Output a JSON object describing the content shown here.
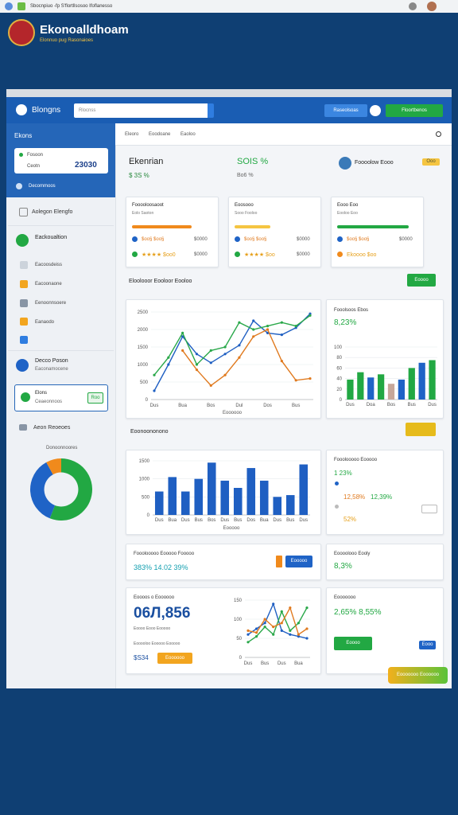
{
  "browser": {
    "tab": "Sbocnpiuo -fp S'flortllsosoo Ifoflanesso"
  },
  "brand": {
    "title": "Ekonoalldhoam",
    "subtitle": "Elonnuo pug Rasonaioes"
  },
  "app": {
    "name": "Blongns",
    "search": "Rlocnss",
    "buttons": [
      "Raseolsoas",
      "Floortbenos"
    ]
  },
  "sidebar": {
    "title": "Ekons",
    "card": {
      "label1": "Fosoon",
      "label2": "Ceotn",
      "value": "23030"
    },
    "link": "Decommoos",
    "groups": [
      "Aolegon Elengfo",
      "Eackoualtion"
    ],
    "items": [
      "Eacoosdeiss",
      "Eacoonaone",
      "Eenoonnsoere",
      "Eanaodo"
    ],
    "group2": {
      "title": "Decco Poson",
      "sub": "Eaconamocene"
    },
    "box": {
      "title": "Elons",
      "sub": "Ceaeonnoos",
      "button": "Roo"
    },
    "group3": "Aeon Reoeoes",
    "donut_title": "Donoonnoores"
  },
  "main": {
    "breadcrumbs": [
      "Eleoro",
      "Eoodoane",
      "Eaoloo"
    ],
    "summary": {
      "title": "Ekenrian",
      "sub": "$ 3S %",
      "value": "SOIS %",
      "value_sub": "Bo6 %",
      "user": "Foooolow Eooo",
      "tag": "Ooo"
    },
    "cards": [
      {
        "title": "Fooooloosaoot",
        "sub": "Eolo Saoton",
        "row1": "$oo§ $oo§",
        "row1_value": "$0000",
        "row2": "★★★★ $oo0",
        "row2_value": "$0000"
      },
      {
        "title": "Eoosooo",
        "sub": "Sooo Fooloo",
        "row1": "$oo§ $oo§",
        "row1_value": "$0000",
        "row2": "★★★★ $oo",
        "row2_value": "$0000"
      },
      {
        "title": "Eooo Eoo",
        "sub": "Eooloo Eoo",
        "row1": "$oo§ $oo§",
        "row1_value": "$0000",
        "row2": "Ekoooo $oo",
        "row2_value": ""
      }
    ],
    "section1": {
      "title": "Eloolooor Eooloor Eooloo",
      "button": "Eoooo"
    },
    "trend_panel": {
      "title": "Fooolsoos Ebos",
      "value": "8,23%"
    },
    "section2": {
      "title": "Eoonoononono"
    },
    "stats_panel": {
      "title": "Fooolooooo Eooooo",
      "rows": [
        "1 23%",
        "12,58%",
        "12,39%",
        "52%"
      ]
    },
    "row3": {
      "title": "Fooolooooo Eooooo Fooooo",
      "value": "383% 14.02 39%",
      "button": "Eooooo",
      "right_title": "Eoooolooo Eooly",
      "right_value": "8,3%"
    },
    "bottom": {
      "title": "Eoooos o Eoooooo",
      "big": "06Л,856",
      "sub": "Eoooo Eooo Eooooo",
      "sub2": "Eooooloo Eooooo Eooooo",
      "price": "$S34",
      "button": "Eoooooo",
      "right_title": "Eooooooo",
      "right_value": "2,65% 8,55%",
      "right_button": "Eoooo",
      "right_small": "Eooo"
    },
    "float_button": "Eooooooo Eoooooo"
  },
  "charts": {
    "line1": {
      "type": "line",
      "categories": [
        "Dus",
        null,
        "Bua",
        null,
        "Bos",
        null,
        "Dul",
        null,
        "Dos",
        null,
        "Bus",
        null
      ],
      "x_label": "Eoooooo",
      "series": [
        {
          "color": "#1f5fc2",
          "values": [
            250,
            1000,
            1800,
            1300,
            1050,
            1300,
            1550,
            2250,
            1900,
            1850,
            2050,
            2450
          ]
        },
        {
          "color": "#2aa84a",
          "values": [
            700,
            1200,
            1900,
            1000,
            1400,
            1500,
            2200,
            2000,
            2100,
            2200,
            2100,
            2400
          ]
        },
        {
          "color": "#e07a1f",
          "values": [
            null,
            null,
            1400,
            850,
            400,
            700,
            1200,
            1800,
            2000,
            1100,
            550,
            600
          ]
        }
      ],
      "ylim": [
        0,
        2500
      ],
      "yticks": [
        0,
        500,
        1000,
        1500,
        2000,
        2500
      ],
      "grid": true
    },
    "bars1": {
      "type": "bar",
      "categories": [
        "Dus",
        null,
        "Doa",
        null,
        "Bos",
        null,
        "Bus",
        null,
        "Dus"
      ],
      "values": [
        38,
        52,
        42,
        48,
        30,
        38,
        60,
        70,
        75
      ],
      "colors": [
        "#22a843",
        "#22a843",
        "#1f63c6",
        "#22a843",
        "#c7a79a",
        "#1f63c6",
        "#22a843",
        "#1f63c6",
        "#22a843"
      ],
      "ylim": [
        0,
        100
      ],
      "yticks": [
        0,
        20,
        40,
        60,
        80,
        100
      ],
      "grid": true
    },
    "bars2": {
      "type": "bar",
      "categories": [
        "Dus",
        "Bua",
        "Dus",
        "Bus",
        "Bos",
        "Dus",
        "Bus",
        "Dos",
        "Bua",
        "Dus",
        "Bus",
        "Dus"
      ],
      "x_label": "Eooooo",
      "values": [
        650,
        1050,
        650,
        1000,
        1450,
        950,
        750,
        1300,
        950,
        500,
        550,
        1400
      ],
      "color": "#1f5fc2",
      "ylim": [
        0,
        1500
      ],
      "yticks": [
        0,
        500,
        1000,
        1500
      ],
      "grid": true
    },
    "donut": {
      "type": "donut",
      "values": [
        56,
        36,
        8
      ],
      "colors": [
        "#22a843",
        "#1f63c6",
        "#f08a1c"
      ]
    },
    "line2": {
      "type": "line",
      "categories": [
        "Dus",
        null,
        "Bus",
        null,
        "Dus",
        null,
        "Bua",
        null
      ],
      "series": [
        {
          "color": "#1f5fc2",
          "values": [
            60,
            75,
            90,
            140,
            70,
            60,
            55,
            50
          ]
        },
        {
          "color": "#2aa84a",
          "values": [
            40,
            55,
            80,
            60,
            120,
            70,
            90,
            130
          ]
        },
        {
          "color": "#e07a1f",
          "values": [
            70,
            65,
            100,
            80,
            90,
            130,
            60,
            75
          ]
        }
      ],
      "ylim": [
        0,
        150
      ],
      "yticks": [
        0,
        50,
        100,
        150
      ],
      "grid": true
    }
  }
}
